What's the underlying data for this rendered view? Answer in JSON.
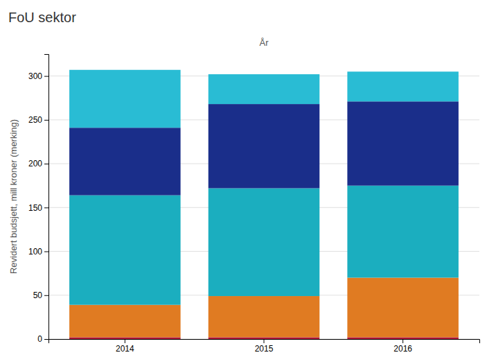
{
  "chart_data": {
    "type": "bar",
    "title": "FoU sektor",
    "xlabel": "År",
    "ylabel": "Revidert budsjett, mill kroner (merking)",
    "categories": [
      "2014",
      "2015",
      "2016"
    ],
    "stacked": true,
    "series": [
      {
        "color": "#b0173a",
        "values": [
          2,
          2,
          2
        ]
      },
      {
        "color": "#e07b22",
        "values": [
          37,
          47,
          68
        ]
      },
      {
        "color": "#1baebf",
        "values": [
          125,
          123,
          105
        ]
      },
      {
        "color": "#1a2e8a",
        "values": [
          77,
          96,
          96
        ]
      },
      {
        "color": "#29bcd4",
        "values": [
          66,
          34,
          34
        ]
      }
    ],
    "ylim": [
      0,
      325
    ],
    "yticks": [
      0,
      50,
      100,
      150,
      200,
      250,
      300
    ],
    "grid": true
  }
}
